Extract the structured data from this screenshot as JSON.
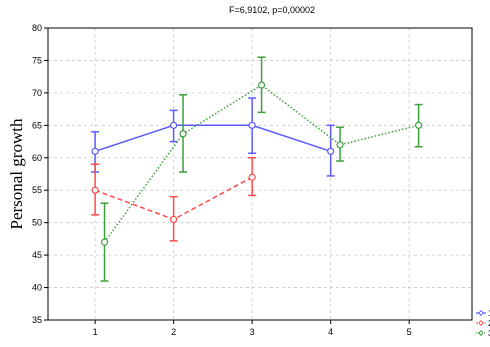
{
  "chart_data": {
    "type": "line",
    "title": "F=6,9102, p=0,00002",
    "xlabel": "",
    "ylabel": "Personal growth",
    "xlim": [
      0.4,
      5.8
    ],
    "ylim": [
      35,
      80
    ],
    "xticks": [
      1,
      2,
      3,
      4,
      5
    ],
    "yticks": [
      35,
      40,
      45,
      50,
      55,
      60,
      65,
      70,
      75,
      80
    ],
    "grid": true,
    "legend_position": "bottom-right, outside plot",
    "series": [
      {
        "name": "1",
        "color": "#5a5aff",
        "line_style": "solid",
        "marker": "circle-open",
        "points": [
          {
            "x": 1,
            "y": 61,
            "lo": 57.8,
            "hi": 64
          },
          {
            "x": 2,
            "y": 65,
            "lo": 62.5,
            "hi": 67.3
          },
          {
            "x": 3,
            "y": 65,
            "lo": 60.7,
            "hi": 69.2
          },
          {
            "x": 4,
            "y": 61,
            "lo": 57.2,
            "hi": 65
          }
        ]
      },
      {
        "name": "2",
        "color": "#ff4a4a",
        "line_style": "dashed",
        "marker": "circle-open",
        "points": [
          {
            "x": 1,
            "y": 55,
            "lo": 51.2,
            "hi": 59
          },
          {
            "x": 2,
            "y": 50.5,
            "lo": 47.2,
            "hi": 54
          },
          {
            "x": 3,
            "y": 57,
            "lo": 54.2,
            "hi": 60
          }
        ]
      },
      {
        "name": "3",
        "color": "#3ca03c",
        "line_style": "dotted",
        "marker": "circle-open",
        "points": [
          {
            "x": 1.12,
            "y": 47,
            "lo": 41,
            "hi": 53
          },
          {
            "x": 2.12,
            "y": 63.7,
            "lo": 57.8,
            "hi": 69.7
          },
          {
            "x": 3.12,
            "y": 71.2,
            "lo": 67,
            "hi": 75.5
          },
          {
            "x": 4.12,
            "y": 62,
            "lo": 59.5,
            "hi": 64.7
          },
          {
            "x": 5.12,
            "y": 65,
            "lo": 61.7,
            "hi": 68.2
          }
        ]
      }
    ]
  }
}
